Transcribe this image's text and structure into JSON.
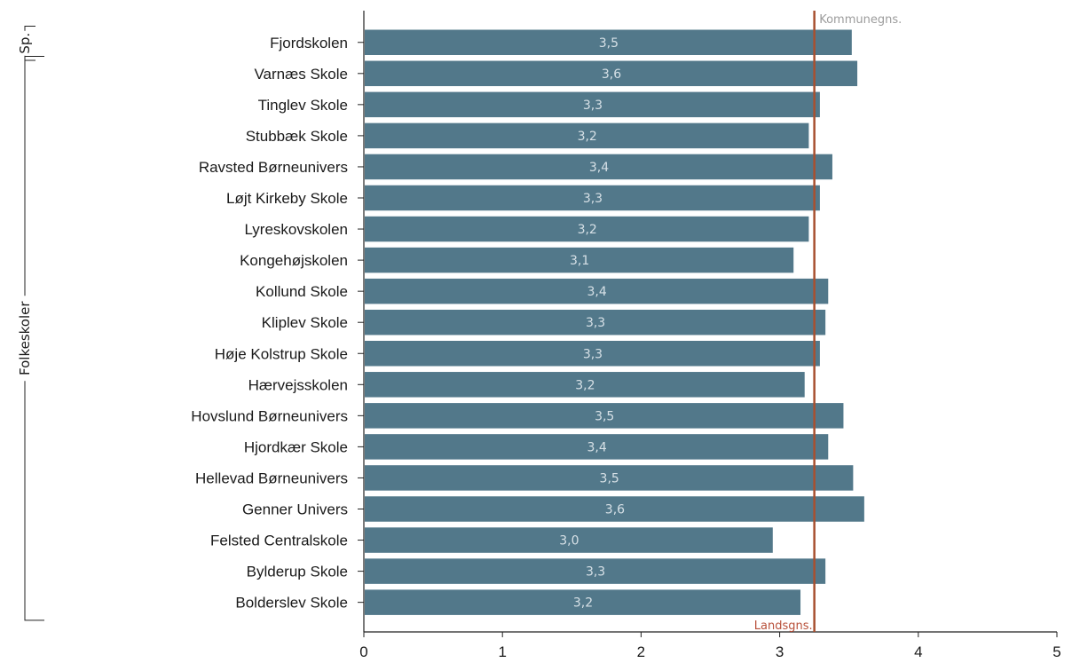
{
  "chart_data": {
    "type": "bar",
    "orientation": "horizontal",
    "categories": [
      "Fjordskolen",
      "Varnæs Skole",
      "Tinglev Skole",
      "Stubbæk Skole",
      "Ravsted Børneunivers",
      "Løjt Kirkeby Skole",
      "Lyreskovskolen",
      "Kongehøjskolen",
      "Kollund Skole",
      "Kliplev Skole",
      "Høje Kolstrup Skole",
      "Hærvejsskolen",
      "Hovslund Børneunivers",
      "Hjordkær Skole",
      "Hellevad Børneunivers",
      "Genner Univers",
      "Felsted Centralskole",
      "Bylderup Skole",
      "Bolderslev Skole"
    ],
    "values": [
      3.52,
      3.56,
      3.29,
      3.21,
      3.38,
      3.29,
      3.21,
      3.1,
      3.35,
      3.33,
      3.29,
      3.18,
      3.46,
      3.35,
      3.53,
      3.61,
      2.95,
      3.33,
      3.15
    ],
    "value_labels": [
      "3,5",
      "3,6",
      "3,3",
      "3,2",
      "3,4",
      "3,3",
      "3,2",
      "3,1",
      "3,4",
      "3,3",
      "3,3",
      "3,2",
      "3,5",
      "3,4",
      "3,5",
      "3,6",
      "3,0",
      "3,3",
      "3,2"
    ],
    "xlim": [
      0,
      5
    ],
    "x_ticks": [
      "0",
      "1",
      "2",
      "3",
      "4",
      "5"
    ],
    "reference_lines": [
      {
        "label": "Kommunegns.",
        "value": 3.26,
        "color": "#9c9c9c",
        "label_position": "top"
      },
      {
        "label": "Landsgns.",
        "value": 3.25,
        "color": "#b8503a",
        "label_position": "bottom"
      }
    ],
    "groups": [
      {
        "label": "Sp.",
        "rows": [
          0,
          0
        ]
      },
      {
        "label": "Folkeskoler",
        "rows": [
          1,
          18
        ]
      }
    ],
    "bar_color": "#52788a",
    "grid": false
  }
}
